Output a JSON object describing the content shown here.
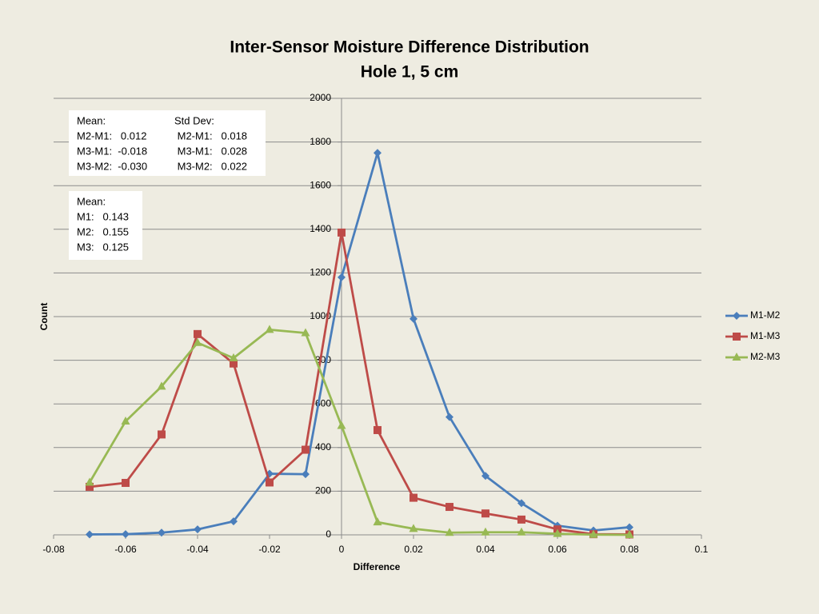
{
  "chart_data": {
    "type": "line",
    "title": "Inter-Sensor Moisture Difference Distribution",
    "subtitle": "Hole 1, 5 cm",
    "x_label": "Difference",
    "y_label": "Count",
    "x": [
      -0.07,
      -0.06,
      -0.05,
      -0.04,
      -0.03,
      -0.02,
      -0.01,
      0,
      0.01,
      0.02,
      0.03,
      0.04,
      0.05,
      0.06,
      0.07,
      0.08
    ],
    "series": [
      {
        "name": "M1-M2",
        "color": "#4a7ebb",
        "marker": "diamond",
        "values": [
          2,
          3,
          10,
          25,
          62,
          280,
          278,
          1180,
          1750,
          990,
          540,
          270,
          145,
          42,
          20,
          35
        ]
      },
      {
        "name": "M1-M3",
        "color": "#be4b48",
        "marker": "square",
        "values": [
          220,
          238,
          460,
          920,
          785,
          240,
          390,
          1385,
          480,
          170,
          128,
          98,
          70,
          25,
          3,
          2
        ]
      },
      {
        "name": "M2-M3",
        "color": "#98b954",
        "marker": "triangle",
        "values": [
          240,
          520,
          680,
          880,
          810,
          940,
          925,
          500,
          58,
          28,
          10,
          12,
          12,
          5,
          1,
          0
        ]
      }
    ],
    "xlim": [
      -0.08,
      0.1
    ],
    "xticks": [
      -0.08,
      -0.06,
      -0.04,
      -0.02,
      0,
      0.02,
      0.04,
      0.06,
      0.08,
      0.1
    ],
    "ylim": [
      0,
      2000
    ],
    "yticks": [
      0,
      200,
      400,
      600,
      800,
      1000,
      1200,
      1400,
      1600,
      1800,
      2000
    ],
    "grid": true,
    "legend": "right",
    "annotations": [
      {
        "columns": [
          [
            "Mean:",
            "M2-M1:   0.012",
            "M3-M1:  -0.018",
            "M3-M2:  -0.030"
          ],
          [
            "Std Dev:",
            " M2-M1:   0.018",
            " M3-M1:   0.028",
            " M3-M2:   0.022"
          ]
        ]
      },
      {
        "columns": [
          [
            "Mean:",
            "M1:   0.143",
            "M2:   0.155",
            "M3:   0.125"
          ]
        ]
      }
    ]
  }
}
